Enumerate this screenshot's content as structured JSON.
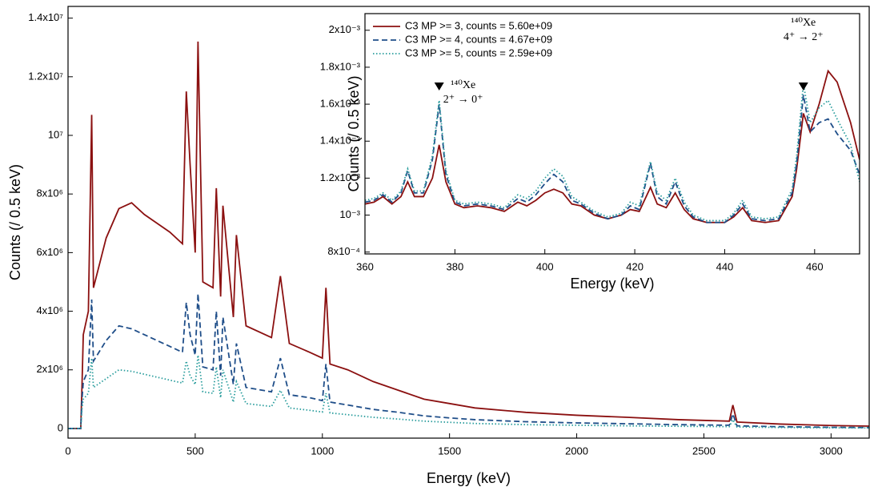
{
  "chart_data": [
    {
      "type": "line",
      "xlabel": "Energy (keV)",
      "ylabel": "Counts (/ 0.5 keV)",
      "xlim": [
        0,
        3150
      ],
      "ylim": [
        -330000,
        14400000
      ],
      "xticks": [
        0,
        500,
        1000,
        1500,
        2000,
        2500,
        3000
      ],
      "yticks": [
        0,
        {
          "value": 2000000,
          "label": "2x10⁶"
        },
        {
          "value": 4000000,
          "label": "4x10⁶"
        },
        {
          "value": 6000000,
          "label": "6x10⁶"
        },
        {
          "value": 8000000,
          "label": "8x10⁶"
        },
        {
          "value": 10000000,
          "label": "10⁷"
        },
        {
          "value": 12000000,
          "label": "1.2x10⁷"
        },
        {
          "value": 14000000,
          "label": "1.4x10⁷"
        }
      ],
      "x": [
        0,
        50,
        55,
        60,
        80,
        93,
        100,
        150,
        200,
        250,
        300,
        350,
        400,
        450,
        465,
        480,
        500,
        511,
        530,
        570,
        583,
        600,
        609,
        650,
        662,
        700,
        800,
        835,
        870,
        950,
        1000,
        1014,
        1030,
        1100,
        1200,
        1300,
        1400,
        1500,
        1600,
        1800,
        2000,
        2200,
        2400,
        2600,
        2614,
        2630,
        2800,
        3000,
        3150
      ],
      "series": [
        {
          "color": "#8b1010",
          "style": "solid",
          "values": [
            0,
            0,
            1500000,
            3200000,
            4000000,
            10700000,
            4800000,
            6500000,
            7500000,
            7700000,
            7300000,
            7000000,
            6700000,
            6300000,
            11500000,
            9000000,
            6000000,
            13200000,
            5000000,
            4800000,
            8200000,
            4500000,
            7600000,
            3800000,
            6600000,
            3500000,
            3100000,
            5200000,
            2900000,
            2600000,
            2400000,
            4800000,
            2200000,
            2000000,
            1600000,
            1300000,
            1000000,
            850000,
            700000,
            550000,
            450000,
            380000,
            300000,
            250000,
            800000,
            220000,
            150000,
            100000,
            80000
          ]
        },
        {
          "color": "#1f4e89",
          "style": "dashed",
          "values": [
            0,
            0,
            1000000,
            1600000,
            2000000,
            4400000,
            2300000,
            3000000,
            3500000,
            3400000,
            3200000,
            3000000,
            2800000,
            2600000,
            4300000,
            3200000,
            2500000,
            4600000,
            2100000,
            2000000,
            4000000,
            1800000,
            3800000,
            1500000,
            2900000,
            1400000,
            1250000,
            2400000,
            1150000,
            1050000,
            950000,
            2200000,
            900000,
            800000,
            650000,
            550000,
            430000,
            360000,
            300000,
            230000,
            190000,
            160000,
            130000,
            110000,
            500000,
            90000,
            60000,
            40000,
            30000
          ]
        },
        {
          "color": "#2a9d9d",
          "style": "dotted",
          "values": [
            0,
            0,
            700000,
            1000000,
            1200000,
            2400000,
            1400000,
            1700000,
            2000000,
            1950000,
            1850000,
            1750000,
            1650000,
            1550000,
            2300000,
            1800000,
            1500000,
            2500000,
            1250000,
            1200000,
            2100000,
            1050000,
            2000000,
            900000,
            1600000,
            850000,
            750000,
            1300000,
            700000,
            620000,
            560000,
            1200000,
            530000,
            470000,
            380000,
            320000,
            250000,
            210000,
            170000,
            130000,
            110000,
            90000,
            75000,
            62000,
            300000,
            50000,
            34000,
            23000,
            17000
          ]
        }
      ]
    },
    {
      "type": "line",
      "xlabel": "Energy (keV)",
      "ylabel": "Counts (/ 0.5 keV)",
      "xlim": [
        360,
        470
      ],
      "ylim": [
        0.00079,
        0.00209
      ],
      "xticks": [
        360,
        380,
        400,
        420,
        440,
        460
      ],
      "yticks": [
        {
          "value": 0.0008,
          "label": "8x10⁻⁴"
        },
        {
          "value": 0.001,
          "label": "10⁻³"
        },
        {
          "value": 0.0012,
          "label": "1.2x10⁻³"
        },
        {
          "value": 0.0014,
          "label": "1.4x10⁻³"
        },
        {
          "value": 0.0016,
          "label": "1.6x10⁻³"
        },
        {
          "value": 0.0018,
          "label": "1.8x10⁻³"
        },
        {
          "value": 0.002,
          "label": "2x10⁻³"
        }
      ],
      "legend": "upper left",
      "annotations": [
        {
          "x": 376.5,
          "lines": [
            "¹⁴⁰Xe",
            "2⁺ → 0⁺"
          ]
        },
        {
          "x": 457.5,
          "lines": [
            "¹⁴⁰Xe",
            "4⁺ → 2⁺"
          ]
        }
      ],
      "x": [
        360,
        362,
        364,
        366,
        368,
        369.5,
        371,
        373,
        375,
        376.5,
        378,
        380,
        382,
        385,
        388,
        391,
        394,
        396,
        398,
        400,
        402,
        404,
        406,
        408,
        411,
        414,
        417,
        419,
        421,
        423.5,
        425,
        427,
        429,
        431,
        433,
        436,
        440,
        442,
        444,
        446,
        449,
        452,
        455,
        456,
        457.5,
        459,
        461,
        463,
        465,
        468,
        470
      ],
      "series": [
        {
          "name": "C3 MP >= 3, counts = 5.60e+09",
          "color": "#8b1010",
          "style": "solid",
          "values": [
            0.00106,
            0.00107,
            0.0011,
            0.00106,
            0.0011,
            0.00118,
            0.0011,
            0.0011,
            0.0012,
            0.00138,
            0.00118,
            0.00106,
            0.00104,
            0.00105,
            0.00104,
            0.00102,
            0.00107,
            0.00105,
            0.00108,
            0.00112,
            0.00114,
            0.00112,
            0.00106,
            0.00105,
            0.001,
            0.00098,
            0.001,
            0.00103,
            0.00102,
            0.00115,
            0.00106,
            0.00104,
            0.00112,
            0.00103,
            0.00098,
            0.00096,
            0.00096,
            0.00099,
            0.00104,
            0.00097,
            0.00096,
            0.00097,
            0.0011,
            0.00125,
            0.00155,
            0.00145,
            0.0016,
            0.00178,
            0.00172,
            0.0015,
            0.0013
          ]
        },
        {
          "name": "C3 MP >= 4, counts = 4.67e+09",
          "color": "#1f4e89",
          "style": "dashed",
          "values": [
            0.00107,
            0.00108,
            0.00111,
            0.00107,
            0.00112,
            0.00124,
            0.00112,
            0.00112,
            0.0013,
            0.0016,
            0.00122,
            0.00107,
            0.00105,
            0.00106,
            0.00105,
            0.00103,
            0.00109,
            0.00107,
            0.00111,
            0.00117,
            0.00122,
            0.00118,
            0.00108,
            0.00106,
            0.00101,
            0.00098,
            0.001,
            0.00105,
            0.00103,
            0.00128,
            0.0011,
            0.00106,
            0.00118,
            0.00105,
            0.00099,
            0.00096,
            0.00096,
            0.001,
            0.00106,
            0.00098,
            0.00097,
            0.00098,
            0.00112,
            0.00128,
            0.00165,
            0.00145,
            0.0015,
            0.00152,
            0.00144,
            0.00135,
            0.00122
          ]
        },
        {
          "name": "C3 MP >= 5, counts = 2.59e+09",
          "color": "#2a9d9d",
          "style": "dotted",
          "values": [
            0.00108,
            0.00109,
            0.00112,
            0.00108,
            0.00113,
            0.00125,
            0.00113,
            0.00113,
            0.00132,
            0.00162,
            0.00124,
            0.00108,
            0.00106,
            0.00107,
            0.00106,
            0.00104,
            0.00111,
            0.00109,
            0.00113,
            0.0012,
            0.00125,
            0.00121,
            0.0011,
            0.00107,
            0.00102,
            0.00099,
            0.00101,
            0.00107,
            0.00105,
            0.00129,
            0.00112,
            0.00108,
            0.0012,
            0.00107,
            0.001,
            0.00097,
            0.00097,
            0.00101,
            0.00108,
            0.00099,
            0.00098,
            0.00099,
            0.00114,
            0.00132,
            0.00171,
            0.0015,
            0.00158,
            0.00162,
            0.00152,
            0.00138,
            0.00118
          ]
        }
      ]
    }
  ]
}
